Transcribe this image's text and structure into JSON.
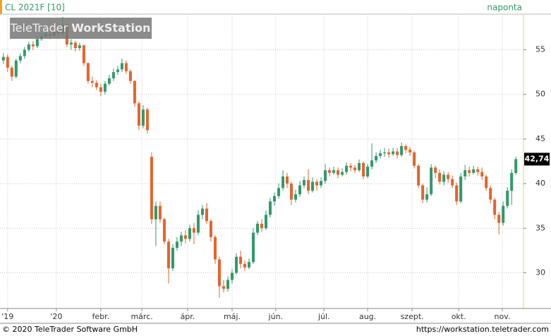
{
  "chart_data": {
    "type": "candlestick",
    "title": "CL 2021F [10]",
    "interval": "naponta",
    "watermark": {
      "regular": "TeleTrader ",
      "bold": "WorkStation"
    },
    "footer_left": "© 2020 TeleTrader Software GmbH",
    "footer_right": "https://workstation.teletrader.com",
    "up_color": "#2f9a6a",
    "down_color": "#e8622a",
    "grid": true,
    "ylim": [
      26,
      59
    ],
    "yticks": [
      30,
      35,
      40,
      45,
      50,
      55
    ],
    "xlim": [
      -0.8,
      122.8
    ],
    "xticks": [
      {
        "value": 1,
        "label": "'19"
      },
      {
        "value": 12.5,
        "label": "'20"
      },
      {
        "value": 23,
        "label": "febr."
      },
      {
        "value": 32.7,
        "label": "márc."
      },
      {
        "value": 43.5,
        "label": "ápr."
      },
      {
        "value": 54,
        "label": "máj."
      },
      {
        "value": 64.3,
        "label": "jún."
      },
      {
        "value": 75.7,
        "label": "júl."
      },
      {
        "value": 86,
        "label": "aug."
      },
      {
        "value": 96.5,
        "label": "szept."
      },
      {
        "value": 107.5,
        "label": "okt."
      },
      {
        "value": 117.8,
        "label": "nov."
      }
    ],
    "last_price": {
      "value": 42.74,
      "label": "42,74"
    },
    "candles": [
      [
        53.8,
        54.6,
        53.4,
        54.2
      ],
      [
        54.2,
        54.5,
        52.5,
        53
      ],
      [
        53,
        53.2,
        51.5,
        52
      ],
      [
        52,
        54,
        51.8,
        53.8
      ],
      [
        53.8,
        54.6,
        53.5,
        54.3
      ],
      [
        54.3,
        55.3,
        54,
        55
      ],
      [
        55,
        55.9,
        54.8,
        55.6
      ],
      [
        55.6,
        56,
        55,
        55.4
      ],
      [
        55.4,
        56.5,
        55.2,
        56.2
      ],
      [
        56.2,
        56.9,
        56,
        56.5
      ],
      [
        56.5,
        57.2,
        56.3,
        56.8
      ],
      [
        56.8,
        57.3,
        56.2,
        56.6
      ],
      [
        56.6,
        57.8,
        56.4,
        57.2
      ],
      [
        57.2,
        58,
        56.3,
        56.8
      ],
      [
        56.8,
        58.7,
        56.5,
        57.8
      ],
      [
        57.8,
        58,
        55.3,
        55.6
      ],
      [
        55.6,
        56.2,
        55,
        55.8
      ],
      [
        55.8,
        56,
        54.8,
        55.2
      ],
      [
        55.2,
        55.8,
        54.9,
        55.5
      ],
      [
        55.5,
        55.6,
        53.2,
        53.5
      ],
      [
        53.5,
        53.6,
        51.2,
        51.5
      ],
      [
        51.5,
        52,
        50.8,
        51.3
      ],
      [
        51.3,
        51.6,
        50.5,
        50.8
      ],
      [
        50.8,
        51.2,
        49.8,
        50.3
      ],
      [
        50.3,
        51.5,
        50,
        51.2
      ],
      [
        51.2,
        52.2,
        51,
        51.8
      ],
      [
        51.8,
        52.9,
        51.5,
        52.5
      ],
      [
        52.5,
        53.2,
        52.2,
        52.8
      ],
      [
        52.8,
        54,
        52.5,
        53.5
      ],
      [
        53.5,
        53.8,
        52.3,
        52.6
      ],
      [
        52.6,
        52.8,
        51.2,
        51.5
      ],
      [
        51.5,
        51.6,
        48.6,
        49
      ],
      [
        49,
        49.2,
        46,
        46.5
      ],
      [
        46.5,
        48.8,
        46.2,
        48.3
      ],
      [
        48.3,
        48.5,
        45.6,
        46
      ],
      [
        43,
        43.5,
        35.5,
        36
      ],
      [
        36,
        38,
        33,
        37.5
      ],
      [
        37.5,
        38,
        35.6,
        36
      ],
      [
        36,
        36.2,
        33.2,
        33.5
      ],
      [
        33.5,
        33.8,
        28.8,
        30.5
      ],
      [
        30.5,
        33.2,
        30.2,
        32.8
      ],
      [
        32.8,
        34,
        32.5,
        33.5
      ],
      [
        33.5,
        34.6,
        33,
        34.2
      ],
      [
        34.2,
        34.8,
        33.3,
        33.8
      ],
      [
        33.8,
        35.4,
        33.5,
        35
      ],
      [
        35,
        35.6,
        33.2,
        34.5
      ],
      [
        34.5,
        37,
        34.2,
        36.5
      ],
      [
        36.5,
        37.6,
        36,
        37.2
      ],
      [
        37.2,
        37.8,
        35.5,
        35.8
      ],
      [
        35.8,
        36,
        33.5,
        34
      ],
      [
        34,
        34.2,
        31,
        31.5
      ],
      [
        31.5,
        31.8,
        27.2,
        28.5
      ],
      [
        28.5,
        29.2,
        27.8,
        28.2
      ],
      [
        28.2,
        29.6,
        27.9,
        29.2
      ],
      [
        29.2,
        30.4,
        28.8,
        30
      ],
      [
        30,
        32.2,
        29.8,
        31.8
      ],
      [
        31.8,
        32.5,
        30.5,
        31
      ],
      [
        31,
        31.4,
        30.2,
        30.6
      ],
      [
        30.6,
        31.6,
        30.4,
        31.2
      ],
      [
        31.2,
        35,
        31,
        34.5
      ],
      [
        34.5,
        35.8,
        34.2,
        35.5
      ],
      [
        35.5,
        36,
        34.6,
        35
      ],
      [
        35,
        37,
        34.8,
        36.5
      ],
      [
        36.5,
        38.4,
        36.2,
        38
      ],
      [
        38,
        39,
        37.5,
        38.6
      ],
      [
        38.6,
        40,
        38.3,
        39.5
      ],
      [
        39.5,
        41.5,
        39.2,
        40.8
      ],
      [
        40.8,
        41.2,
        39.5,
        40
      ],
      [
        40,
        40.2,
        37.6,
        38.2
      ],
      [
        38.2,
        39.3,
        37.9,
        38.8
      ],
      [
        38.8,
        40.3,
        38.5,
        39.8
      ],
      [
        39.8,
        40.8,
        39.5,
        40.4
      ],
      [
        40.4,
        41.6,
        38.8,
        39.2
      ],
      [
        39.2,
        40.7,
        39,
        40.2
      ],
      [
        40.2,
        40.5,
        39.2,
        39.8
      ],
      [
        39.8,
        40.7,
        39.5,
        40.3
      ],
      [
        40.3,
        42.2,
        40,
        41.5
      ],
      [
        41.5,
        41.8,
        40.8,
        41.2
      ],
      [
        41.2,
        41.9,
        41,
        41.5
      ],
      [
        41.5,
        41.8,
        40.6,
        41
      ],
      [
        41,
        41.7,
        40.8,
        41.3
      ],
      [
        41.3,
        42.4,
        41,
        42
      ],
      [
        42,
        42.3,
        41.4,
        41.8
      ],
      [
        41.8,
        42.1,
        41.2,
        41.5
      ],
      [
        41.5,
        42.7,
        41.3,
        42.3
      ],
      [
        42.3,
        42.5,
        40.5,
        40.8
      ],
      [
        40.8,
        42.2,
        40.6,
        41.9
      ],
      [
        41.9,
        44.5,
        41.6,
        42.6
      ],
      [
        42.6,
        43.5,
        42.3,
        43.1
      ],
      [
        43.1,
        43.8,
        42.8,
        43.4
      ],
      [
        43.4,
        44,
        43,
        43.5
      ],
      [
        43.5,
        43.9,
        42.9,
        43.3
      ],
      [
        43.3,
        44,
        43.1,
        43.6
      ],
      [
        43.6,
        44,
        42.8,
        43.2
      ],
      [
        43.2,
        44.6,
        43,
        44.2
      ],
      [
        44.2,
        44.4,
        43.4,
        43.8
      ],
      [
        43.8,
        44.1,
        43.1,
        43.5
      ],
      [
        43.5,
        43.7,
        41.7,
        42
      ],
      [
        42,
        42.2,
        39.5,
        39.8
      ],
      [
        39.8,
        40,
        37.8,
        38.2
      ],
      [
        38.2,
        39.6,
        37.9,
        38.8
      ],
      [
        38.8,
        42.2,
        38.6,
        41.8
      ],
      [
        41.8,
        42,
        40.6,
        41.2
      ],
      [
        41.2,
        41.6,
        39.9,
        40.2
      ],
      [
        40.2,
        41.4,
        39.8,
        41
      ],
      [
        41,
        41.3,
        40.1,
        40.5
      ],
      [
        40.5,
        40.9,
        39.5,
        39.8
      ],
      [
        39.8,
        40.1,
        37.6,
        38
      ],
      [
        38,
        41.2,
        37.8,
        40.8
      ],
      [
        40.8,
        42.1,
        40.4,
        41.5
      ],
      [
        41.5,
        41.9,
        40.8,
        41.2
      ],
      [
        41.2,
        42,
        41,
        41.6
      ],
      [
        41.6,
        41.9,
        40.9,
        41.3
      ],
      [
        41.3,
        41.8,
        40.4,
        40.8
      ],
      [
        40.8,
        41,
        39.2,
        39.5
      ],
      [
        39.5,
        39.8,
        37.8,
        38.2
      ],
      [
        38.2,
        38.4,
        36,
        36.5
      ],
      [
        36.5,
        36.8,
        34.3,
        35.6
      ],
      [
        35.6,
        38,
        35.3,
        37.5
      ],
      [
        37.5,
        39.6,
        37.2,
        39.2
      ],
      [
        39.2,
        41.6,
        37.6,
        41.2
      ],
      [
        41.2,
        43,
        41,
        42.74
      ]
    ]
  }
}
